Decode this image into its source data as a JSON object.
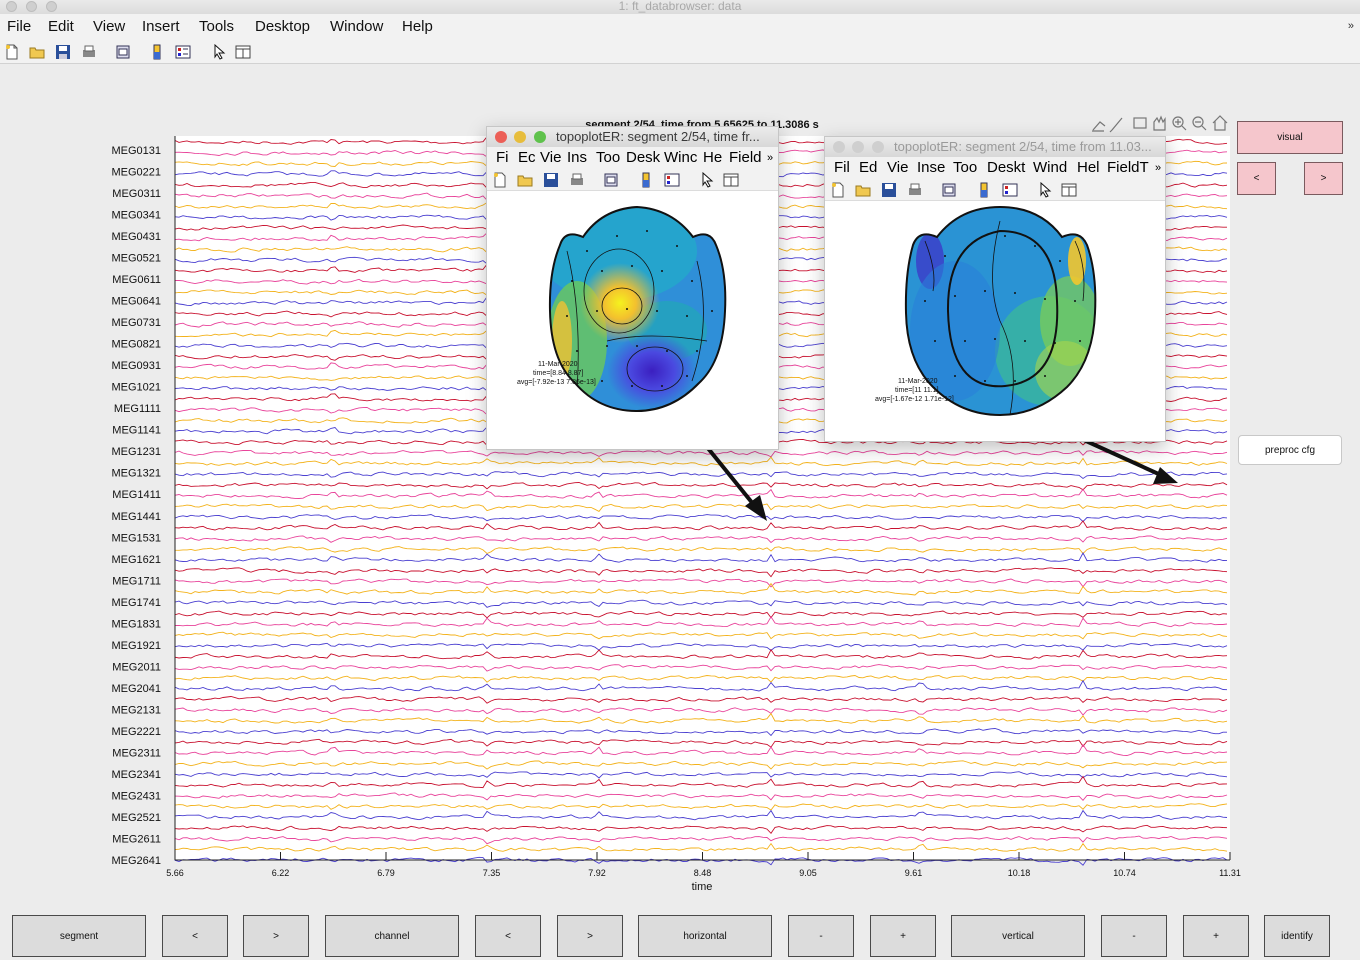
{
  "window": {
    "title": "1: ft_databrowser: data"
  },
  "menu": [
    "File",
    "Edit",
    "View",
    "Insert",
    "Tools",
    "Desktop",
    "Window",
    "Help"
  ],
  "menu_overflow": "»",
  "axes": {
    "title": "segment 2/54, time from 5.65625 to 11.3086 s",
    "xlabel": "time",
    "xticks": [
      "5.66",
      "6.22",
      "6.79",
      "7.35",
      "7.92",
      "8.48",
      "9.05",
      "9.61",
      "10.18",
      "10.74",
      "11.31"
    ],
    "channels": [
      "MEG0131",
      "MEG0221",
      "MEG0311",
      "MEG0341",
      "MEG0431",
      "MEG0521",
      "MEG0611",
      "MEG0641",
      "MEG0731",
      "MEG0821",
      "MEG0931",
      "MEG1021",
      "MEG1111",
      "MEG1141",
      "MEG1231",
      "MEG1321",
      "MEG1411",
      "MEG1441",
      "MEG1531",
      "MEG1621",
      "MEG1711",
      "MEG1741",
      "MEG1831",
      "MEG1921",
      "MEG2011",
      "MEG2041",
      "MEG2131",
      "MEG2221",
      "MEG2311",
      "MEG2341",
      "MEG2431",
      "MEG2521",
      "MEG2611",
      "MEG2641"
    ],
    "trace_colors": [
      "#c8102e",
      "#e8439a",
      "#f3b21b",
      "#4a3fd0"
    ]
  },
  "right_panel": {
    "visual": "visual",
    "prev": "<",
    "next": ">",
    "preproc": "preproc cfg"
  },
  "bottom_buttons": [
    "segment",
    "<",
    ">",
    "channel",
    "<",
    ">",
    "horizontal",
    "-",
    "+",
    "vertical",
    "-",
    "+",
    "identify"
  ],
  "popup1": {
    "title": "topoplotER: segment 2/54, time fr...",
    "menu": [
      "Fi",
      "Ec",
      "Vie",
      "Ins",
      "Too",
      "Desk",
      "Winc",
      "He",
      "Field"
    ],
    "overflow": "»",
    "text": [
      "11-Mar-2020",
      "time=[8.84 8.87]",
      "avg=[-7.92e-13 7.86e-13]"
    ]
  },
  "popup2": {
    "title": "topoplotER: segment 2/54, time from 11.03...",
    "menu": [
      "Fil",
      "Ed",
      "Vie",
      "Inse",
      "Too",
      "Deskt",
      "Wind",
      "Hel",
      "FieldT"
    ],
    "overflow": "»",
    "text": [
      "11-Mar-2020",
      "time=[11 11.1]",
      "avg=[-1.67e-12 1.71e-12]"
    ]
  }
}
